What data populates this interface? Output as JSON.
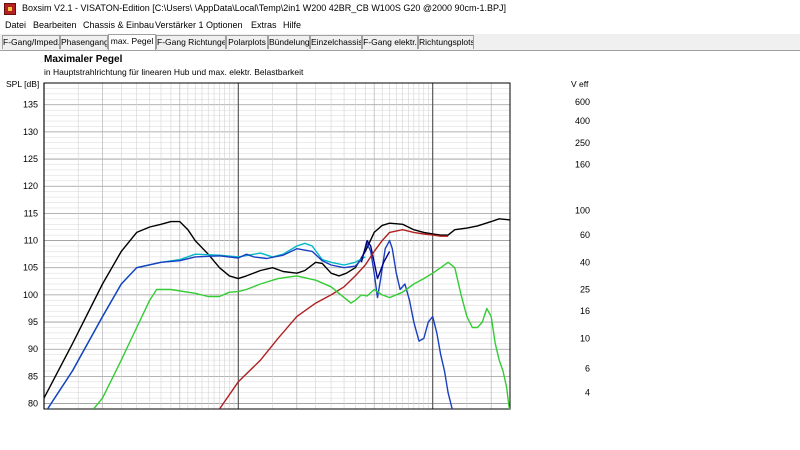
{
  "window": {
    "title": "Boxsim V2.1 - VISATON-Edition [C:\\Users\\        \\AppData\\Local\\Temp\\2in1 W200 42BR_CB W100S G20 @2000 90cm-1.BPJ]"
  },
  "menu": [
    "Datei",
    "Bearbeiten",
    "Chassis & Einbau",
    "Verstärker 1",
    "Optionen",
    "Extras",
    "Hilfe"
  ],
  "tabs": [
    {
      "label": "F-Gang/Imped.",
      "active": false
    },
    {
      "label": "Phasengang",
      "active": false
    },
    {
      "label": "max. Pegel",
      "active": true
    },
    {
      "label": "F-Gang Richtungen",
      "active": false
    },
    {
      "label": "Polarplots",
      "active": false
    },
    {
      "label": "Bündelung",
      "active": false
    },
    {
      "label": "Einzelchassis",
      "active": false
    },
    {
      "label": "F-Gang elektr.",
      "active": false
    },
    {
      "label": "Richtungsplots",
      "active": false
    }
  ],
  "chart_data": {
    "type": "line",
    "title": "Maximaler Pegel",
    "subtitle": "in Hauptstrahlrichtung für linearen Hub und max. elektr. Belastbarkeit",
    "ylabel": "SPL [dB]",
    "y2label": "V eff",
    "xscale": "log",
    "xlim": [
      10,
      2500
    ],
    "ylim": [
      79,
      139
    ],
    "yticks": [
      80,
      85,
      90,
      95,
      100,
      105,
      110,
      115,
      120,
      125,
      130,
      135
    ],
    "y2ticks": [
      {
        "label": "600",
        "spl": 135.5
      },
      {
        "label": "400",
        "spl": 132
      },
      {
        "label": "250",
        "spl": 128
      },
      {
        "label": "160",
        "spl": 124
      },
      {
        "label": "100",
        "spl": 115.5
      },
      {
        "label": "60",
        "spl": 111
      },
      {
        "label": "40",
        "spl": 106
      },
      {
        "label": "25",
        "spl": 101
      },
      {
        "label": "16",
        "spl": 97
      },
      {
        "label": "10",
        "spl": 92
      },
      {
        "label": "6",
        "spl": 86.5
      },
      {
        "label": "4",
        "spl": 82
      }
    ],
    "grid": true,
    "series": [
      {
        "color": "#000000",
        "points": [
          [
            10,
            81
          ],
          [
            14,
            91
          ],
          [
            20,
            102
          ],
          [
            25,
            108
          ],
          [
            30,
            111.5
          ],
          [
            35,
            112.5
          ],
          [
            40,
            113
          ],
          [
            45,
            113.5
          ],
          [
            50,
            113.5
          ],
          [
            55,
            112
          ],
          [
            60,
            110
          ],
          [
            70,
            107.5
          ],
          [
            80,
            105
          ],
          [
            90,
            103.5
          ],
          [
            100,
            103
          ],
          [
            110,
            103.5
          ],
          [
            130,
            104.5
          ],
          [
            150,
            105
          ],
          [
            170,
            104.3
          ],
          [
            200,
            104
          ],
          [
            220,
            104.5
          ],
          [
            250,
            106
          ],
          [
            270,
            105.8
          ],
          [
            300,
            104
          ],
          [
            330,
            103.5
          ],
          [
            360,
            104
          ],
          [
            400,
            105
          ],
          [
            450,
            108
          ],
          [
            500,
            111.5
          ],
          [
            550,
            112.8
          ],
          [
            600,
            113.2
          ],
          [
            700,
            113
          ],
          [
            800,
            112
          ],
          [
            900,
            111.5
          ],
          [
            1000,
            111.2
          ],
          [
            1100,
            111
          ],
          [
            1200,
            111
          ],
          [
            1300,
            112
          ],
          [
            1500,
            112.3
          ],
          [
            1700,
            112.7
          ],
          [
            2000,
            113.5
          ],
          [
            2200,
            114
          ],
          [
            2500,
            113.8
          ]
        ]
      },
      {
        "color": "#00b8c8",
        "points": [
          [
            10,
            78
          ],
          [
            14,
            86
          ],
          [
            20,
            96
          ],
          [
            25,
            102
          ],
          [
            30,
            105
          ],
          [
            40,
            106
          ],
          [
            50,
            106.5
          ],
          [
            60,
            107.5
          ],
          [
            80,
            107.3
          ],
          [
            100,
            107
          ],
          [
            130,
            107.7
          ],
          [
            150,
            107
          ],
          [
            170,
            107.5
          ],
          [
            200,
            109
          ],
          [
            220,
            109.5
          ],
          [
            240,
            109
          ],
          [
            270,
            106.5
          ],
          [
            300,
            106
          ],
          [
            350,
            105.5
          ],
          [
            400,
            106
          ],
          [
            450,
            107
          ]
        ]
      },
      {
        "color": "#1a3fc0",
        "points": [
          [
            10,
            78
          ],
          [
            14,
            86
          ],
          [
            20,
            96
          ],
          [
            25,
            102
          ],
          [
            30,
            105
          ],
          [
            40,
            106
          ],
          [
            50,
            106.3
          ],
          [
            60,
            107
          ],
          [
            80,
            107.2
          ],
          [
            100,
            106.8
          ],
          [
            110,
            107.5
          ],
          [
            120,
            107
          ],
          [
            140,
            106.7
          ],
          [
            170,
            107.3
          ],
          [
            200,
            108.5
          ],
          [
            240,
            108
          ],
          [
            270,
            106.3
          ],
          [
            300,
            105.5
          ],
          [
            350,
            105
          ],
          [
            400,
            105.3
          ],
          [
            430,
            106.5
          ],
          [
            460,
            109.5
          ],
          [
            480,
            108
          ],
          [
            500,
            104
          ],
          [
            520,
            99.5
          ],
          [
            540,
            103
          ],
          [
            570,
            108.5
          ],
          [
            600,
            110
          ],
          [
            620,
            108.5
          ],
          [
            650,
            104
          ],
          [
            680,
            101
          ],
          [
            720,
            102
          ],
          [
            760,
            99
          ],
          [
            800,
            95
          ],
          [
            850,
            91.5
          ],
          [
            900,
            92
          ],
          [
            950,
            95
          ],
          [
            1000,
            96
          ],
          [
            1050,
            93
          ],
          [
            1100,
            89
          ],
          [
            1150,
            86
          ],
          [
            1200,
            82
          ],
          [
            1260,
            79
          ]
        ]
      },
      {
        "color": "#000080",
        "points": [
          [
            430,
            106
          ],
          [
            460,
            110
          ],
          [
            480,
            109
          ],
          [
            500,
            106
          ],
          [
            520,
            103
          ],
          [
            560,
            106
          ],
          [
            600,
            108
          ]
        ]
      },
      {
        "color": "#b02020",
        "points": [
          [
            80,
            79
          ],
          [
            100,
            84
          ],
          [
            130,
            88
          ],
          [
            160,
            92
          ],
          [
            200,
            96
          ],
          [
            250,
            98.5
          ],
          [
            300,
            100
          ],
          [
            350,
            101.5
          ],
          [
            400,
            103.5
          ],
          [
            450,
            105.5
          ],
          [
            500,
            108
          ],
          [
            550,
            110
          ],
          [
            600,
            111.5
          ],
          [
            700,
            112
          ],
          [
            800,
            111.5
          ],
          [
            900,
            111.2
          ],
          [
            1000,
            111
          ],
          [
            1100,
            110.8
          ],
          [
            1200,
            110.8
          ]
        ]
      },
      {
        "color": "#33cc33",
        "points": [
          [
            18,
            79
          ],
          [
            20,
            81
          ],
          [
            25,
            88
          ],
          [
            30,
            94
          ],
          [
            35,
            99
          ],
          [
            38,
            101
          ],
          [
            45,
            101
          ],
          [
            60,
            100.3
          ],
          [
            70,
            99.7
          ],
          [
            80,
            99.7
          ],
          [
            90,
            100.5
          ],
          [
            100,
            100.6
          ],
          [
            110,
            101
          ],
          [
            130,
            102
          ],
          [
            160,
            103
          ],
          [
            200,
            103.5
          ],
          [
            250,
            102.7
          ],
          [
            300,
            101.5
          ],
          [
            350,
            99.5
          ],
          [
            380,
            98.5
          ],
          [
            400,
            99
          ],
          [
            430,
            100
          ],
          [
            460,
            99.8
          ],
          [
            500,
            101
          ],
          [
            550,
            100
          ],
          [
            600,
            99.5
          ],
          [
            700,
            100.5
          ],
          [
            800,
            102
          ],
          [
            900,
            103
          ],
          [
            1000,
            104
          ],
          [
            1100,
            105
          ],
          [
            1200,
            106
          ],
          [
            1300,
            105
          ],
          [
            1400,
            100
          ],
          [
            1500,
            96
          ],
          [
            1600,
            94
          ],
          [
            1700,
            94
          ],
          [
            1800,
            95
          ],
          [
            1900,
            97.5
          ],
          [
            2000,
            96
          ],
          [
            2100,
            91
          ],
          [
            2200,
            88
          ],
          [
            2300,
            86
          ],
          [
            2400,
            83
          ],
          [
            2500,
            78
          ]
        ]
      }
    ]
  }
}
